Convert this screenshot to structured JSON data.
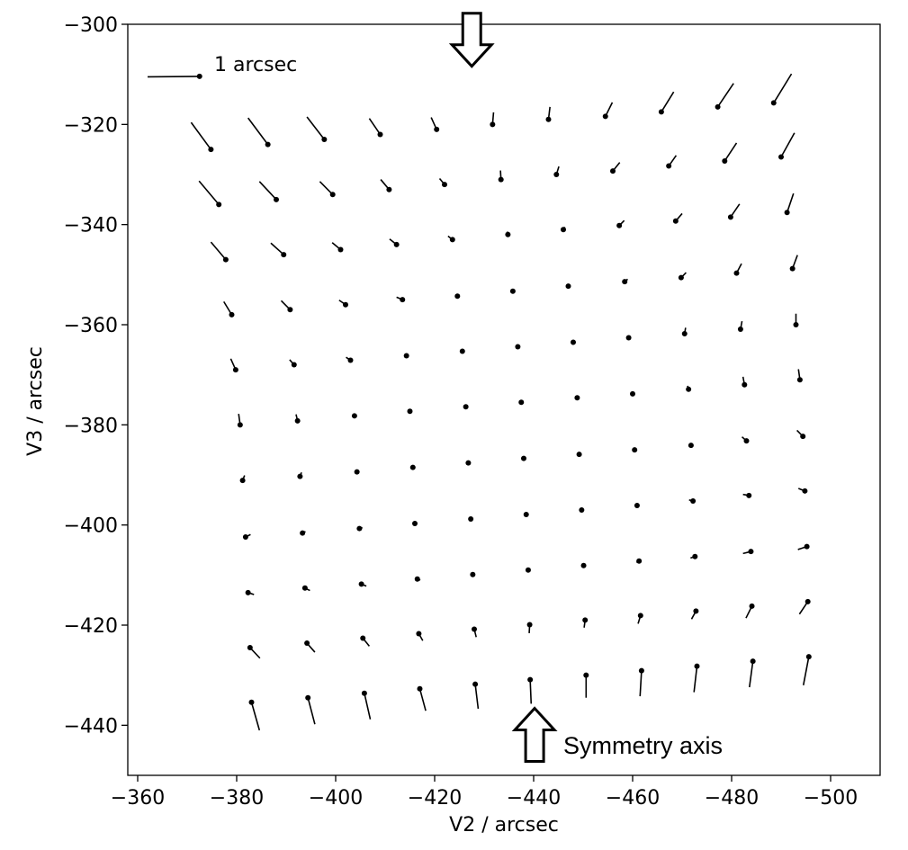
{
  "chart_data": {
    "type": "quiver",
    "title": "",
    "xlabel": "V2 / arcsec",
    "ylabel": "V3 / arcsec",
    "xlim": [
      -358,
      -510
    ],
    "ylim": [
      -450,
      -300
    ],
    "x_axis_inverted": true,
    "xticks": [
      -360,
      -380,
      -400,
      -420,
      -440,
      -460,
      -480,
      -500
    ],
    "yticks": [
      -300,
      -320,
      -340,
      -360,
      -380,
      -400,
      -420,
      -440
    ],
    "xtick_labels": [
      "−360",
      "−380",
      "−400",
      "−420",
      "−440",
      "−460",
      "−480",
      "−500"
    ],
    "ytick_labels": [
      "−300",
      "−320",
      "−340",
      "−360",
      "−380",
      "−400",
      "−420",
      "−440"
    ],
    "grid": false,
    "scale_arrow": {
      "label": "1 arcsec",
      "x": -362,
      "y": -310.5,
      "dx": -10.5,
      "dy": 0.1
    },
    "vectors": [
      {
        "x": -374.8,
        "y": -325,
        "dx": 4,
        "dy": 5.4
      },
      {
        "x": -386.3,
        "y": -324,
        "dx": 4,
        "dy": 5.3
      },
      {
        "x": -397.7,
        "y": -323,
        "dx": 3.5,
        "dy": 4.5
      },
      {
        "x": -409,
        "y": -322,
        "dx": 2.2,
        "dy": 3.2
      },
      {
        "x": -420.4,
        "y": -321,
        "dx": 1.1,
        "dy": 2.4
      },
      {
        "x": -431.7,
        "y": -320,
        "dx": -0.2,
        "dy": 2.4
      },
      {
        "x": -443,
        "y": -319,
        "dx": -0.3,
        "dy": 2.5
      },
      {
        "x": -454.5,
        "y": -318.4,
        "dx": -1.4,
        "dy": 2.8
      },
      {
        "x": -465.8,
        "y": -317.5,
        "dx": -2.5,
        "dy": 4
      },
      {
        "x": -477.2,
        "y": -316.5,
        "dx": -3.2,
        "dy": 4.7
      },
      {
        "x": -488.5,
        "y": -315.7,
        "dx": -3.6,
        "dy": 5.8
      },
      {
        "x": -376.4,
        "y": -336,
        "dx": 4,
        "dy": 4.7
      },
      {
        "x": -388,
        "y": -335,
        "dx": 3.4,
        "dy": 3.6
      },
      {
        "x": -399.4,
        "y": -334,
        "dx": 2.6,
        "dy": 2.6
      },
      {
        "x": -410.8,
        "y": -333,
        "dx": 1.7,
        "dy": 2
      },
      {
        "x": -422,
        "y": -332,
        "dx": 1,
        "dy": 1.2
      },
      {
        "x": -433.4,
        "y": -331,
        "dx": 0.1,
        "dy": 1.8
      },
      {
        "x": -444.6,
        "y": -330,
        "dx": -0.5,
        "dy": 1.6
      },
      {
        "x": -456,
        "y": -329.3,
        "dx": -1.4,
        "dy": 1.7
      },
      {
        "x": -467.3,
        "y": -328.3,
        "dx": -1.5,
        "dy": 2.1
      },
      {
        "x": -478.6,
        "y": -327.3,
        "dx": -2.4,
        "dy": 3.6
      },
      {
        "x": -490,
        "y": -326.5,
        "dx": -2.7,
        "dy": 4.8
      },
      {
        "x": -377.8,
        "y": -347,
        "dx": 3,
        "dy": 3.5
      },
      {
        "x": -389.5,
        "y": -346,
        "dx": 2.6,
        "dy": 2.3
      },
      {
        "x": -401,
        "y": -345,
        "dx": 1.7,
        "dy": 1.4
      },
      {
        "x": -412.3,
        "y": -344,
        "dx": 1.4,
        "dy": 1.1
      },
      {
        "x": -423.6,
        "y": -343,
        "dx": 0.9,
        "dy": 0.7
      },
      {
        "x": -434.8,
        "y": -342,
        "dx": 0.1,
        "dy": 0.6
      },
      {
        "x": -446,
        "y": -341,
        "dx": -0.3,
        "dy": 0.5
      },
      {
        "x": -457.3,
        "y": -340.2,
        "dx": -1,
        "dy": 1
      },
      {
        "x": -468.7,
        "y": -339.3,
        "dx": -1.3,
        "dy": 1.5
      },
      {
        "x": -479.8,
        "y": -338.5,
        "dx": -1.8,
        "dy": 2.6
      },
      {
        "x": -491.2,
        "y": -337.6,
        "dx": -1.3,
        "dy": 3.8
      },
      {
        "x": -379,
        "y": -358,
        "dx": 1.6,
        "dy": 2.6
      },
      {
        "x": -390.8,
        "y": -357,
        "dx": 1.8,
        "dy": 1.8
      },
      {
        "x": -402,
        "y": -356,
        "dx": 1.3,
        "dy": 0.9
      },
      {
        "x": -413.5,
        "y": -355,
        "dx": 1.2,
        "dy": 0.5
      },
      {
        "x": -424.6,
        "y": -354.3,
        "dx": 0.1,
        "dy": 0.3
      },
      {
        "x": -435.8,
        "y": -353.3,
        "dx": 0,
        "dy": 0
      },
      {
        "x": -447,
        "y": -352.3,
        "dx": -0.3,
        "dy": 0.3
      },
      {
        "x": -458.4,
        "y": -351.4,
        "dx": -0.6,
        "dy": 0.5
      },
      {
        "x": -469.8,
        "y": -350.6,
        "dx": -1,
        "dy": 1
      },
      {
        "x": -481,
        "y": -349.7,
        "dx": -1,
        "dy": 1.9
      },
      {
        "x": -492.3,
        "y": -348.8,
        "dx": -1,
        "dy": 2.7
      },
      {
        "x": -379.8,
        "y": -369,
        "dx": 1,
        "dy": 2.2
      },
      {
        "x": -391.6,
        "y": -368,
        "dx": 0.9,
        "dy": 1
      },
      {
        "x": -403,
        "y": -367.1,
        "dx": 0.9,
        "dy": 0.6
      },
      {
        "x": -414.3,
        "y": -366.2,
        "dx": 0.3,
        "dy": 0.2
      },
      {
        "x": -425.6,
        "y": -365.3,
        "dx": 0,
        "dy": 0
      },
      {
        "x": -436.8,
        "y": -364.4,
        "dx": 0,
        "dy": 0
      },
      {
        "x": -448,
        "y": -363.5,
        "dx": 0,
        "dy": 0
      },
      {
        "x": -459.2,
        "y": -362.6,
        "dx": -0.3,
        "dy": 0.4
      },
      {
        "x": -470.5,
        "y": -361.8,
        "dx": -0.2,
        "dy": 1.2
      },
      {
        "x": -481.8,
        "y": -360.9,
        "dx": -0.3,
        "dy": 1.6
      },
      {
        "x": -493,
        "y": -360,
        "dx": 0,
        "dy": 2.2
      },
      {
        "x": -380.7,
        "y": -380,
        "dx": 0.3,
        "dy": 2.2
      },
      {
        "x": -392.3,
        "y": -379.2,
        "dx": 0.3,
        "dy": 1.3
      },
      {
        "x": -403.8,
        "y": -378.2,
        "dx": 0.1,
        "dy": 0.5
      },
      {
        "x": -415,
        "y": -377.3,
        "dx": 0,
        "dy": 0
      },
      {
        "x": -426.3,
        "y": -376.4,
        "dx": 0,
        "dy": 0
      },
      {
        "x": -437.5,
        "y": -375.5,
        "dx": 0,
        "dy": 0
      },
      {
        "x": -448.8,
        "y": -374.6,
        "dx": 0,
        "dy": 0
      },
      {
        "x": -460,
        "y": -373.8,
        "dx": 0,
        "dy": 0
      },
      {
        "x": -471.3,
        "y": -372.9,
        "dx": 0.2,
        "dy": 0.7
      },
      {
        "x": -482.6,
        "y": -372,
        "dx": 0.3,
        "dy": 1.6
      },
      {
        "x": -493.8,
        "y": -371,
        "dx": 0.3,
        "dy": 2.1
      },
      {
        "x": -381.2,
        "y": -391.1,
        "dx": -0.4,
        "dy": 1
      },
      {
        "x": -392.8,
        "y": -390.3,
        "dx": -0.3,
        "dy": 0.8
      },
      {
        "x": -404.3,
        "y": -389.4,
        "dx": 0,
        "dy": 0
      },
      {
        "x": -415.6,
        "y": -388.5,
        "dx": 0,
        "dy": 0
      },
      {
        "x": -426.8,
        "y": -387.6,
        "dx": 0,
        "dy": 0
      },
      {
        "x": -438,
        "y": -386.7,
        "dx": 0,
        "dy": 0
      },
      {
        "x": -449.2,
        "y": -385.9,
        "dx": 0,
        "dy": 0
      },
      {
        "x": -460.4,
        "y": -385,
        "dx": 0,
        "dy": 0
      },
      {
        "x": -471.8,
        "y": -384.1,
        "dx": 0.3,
        "dy": 0.3
      },
      {
        "x": -483,
        "y": -383.2,
        "dx": 0.9,
        "dy": 0.8
      },
      {
        "x": -494.4,
        "y": -382.3,
        "dx": 1.2,
        "dy": 1.2
      },
      {
        "x": -381.8,
        "y": -402.4,
        "dx": -1,
        "dy": 0.5
      },
      {
        "x": -393.3,
        "y": -401.6,
        "dx": -0.6,
        "dy": 0.3
      },
      {
        "x": -404.8,
        "y": -400.7,
        "dx": -0.6,
        "dy": 0.2
      },
      {
        "x": -416,
        "y": -399.7,
        "dx": -0.3,
        "dy": 0
      },
      {
        "x": -427.3,
        "y": -398.8,
        "dx": 0,
        "dy": 0
      },
      {
        "x": -438.5,
        "y": -397.9,
        "dx": 0,
        "dy": 0
      },
      {
        "x": -449.7,
        "y": -397,
        "dx": 0,
        "dy": 0
      },
      {
        "x": -460.9,
        "y": -396.1,
        "dx": 0.5,
        "dy": 0
      },
      {
        "x": -472.2,
        "y": -395.2,
        "dx": 0.8,
        "dy": 0.2
      },
      {
        "x": -483.5,
        "y": -394.1,
        "dx": 1.2,
        "dy": 0.2
      },
      {
        "x": -494.8,
        "y": -393.2,
        "dx": 1.3,
        "dy": 0.5
      },
      {
        "x": -382.3,
        "y": -413.5,
        "dx": -1.2,
        "dy": -0.4
      },
      {
        "x": -393.8,
        "y": -412.6,
        "dx": -1,
        "dy": -0.5
      },
      {
        "x": -405.2,
        "y": -411.8,
        "dx": -1,
        "dy": -0.4
      },
      {
        "x": -416.5,
        "y": -410.8,
        "dx": -0.6,
        "dy": -0.2
      },
      {
        "x": -427.7,
        "y": -409.9,
        "dx": -0.3,
        "dy": -0.2
      },
      {
        "x": -438.9,
        "y": -409,
        "dx": 0,
        "dy": 0
      },
      {
        "x": -450.1,
        "y": -408.1,
        "dx": 0.2,
        "dy": -0.3
      },
      {
        "x": -461.3,
        "y": -407.2,
        "dx": 0.5,
        "dy": -0.3
      },
      {
        "x": -472.6,
        "y": -406.3,
        "dx": 0.9,
        "dy": -0.3
      },
      {
        "x": -483.9,
        "y": -405.3,
        "dx": 1.6,
        "dy": -0.4
      },
      {
        "x": -495.2,
        "y": -404.3,
        "dx": 1.8,
        "dy": -0.6
      },
      {
        "x": -382.7,
        "y": -424.5,
        "dx": -2,
        "dy": -2.1
      },
      {
        "x": -394.2,
        "y": -423.6,
        "dx": -1.6,
        "dy": -1.8
      },
      {
        "x": -405.5,
        "y": -422.6,
        "dx": -1.3,
        "dy": -1.6
      },
      {
        "x": -416.8,
        "y": -421.7,
        "dx": -0.8,
        "dy": -1.4
      },
      {
        "x": -428,
        "y": -420.8,
        "dx": -0.4,
        "dy": -1.6
      },
      {
        "x": -439.2,
        "y": -419.9,
        "dx": 0.1,
        "dy": -1.7
      },
      {
        "x": -450.4,
        "y": -419,
        "dx": 0.2,
        "dy": -1.5
      },
      {
        "x": -461.6,
        "y": -418.1,
        "dx": 0.5,
        "dy": -1.6
      },
      {
        "x": -472.8,
        "y": -417.2,
        "dx": 0.9,
        "dy": -1.6
      },
      {
        "x": -484.1,
        "y": -416.2,
        "dx": 1.2,
        "dy": -2.4
      },
      {
        "x": -495.4,
        "y": -415.3,
        "dx": 1.7,
        "dy": -2.5
      },
      {
        "x": -383,
        "y": -435.4,
        "dx": -1.6,
        "dy": -5.6
      },
      {
        "x": -394.4,
        "y": -434.5,
        "dx": -1.4,
        "dy": -5.3
      },
      {
        "x": -405.8,
        "y": -433.6,
        "dx": -1.2,
        "dy": -5.2
      },
      {
        "x": -417,
        "y": -432.7,
        "dx": -1.2,
        "dy": -4.4
      },
      {
        "x": -428.2,
        "y": -431.8,
        "dx": -0.6,
        "dy": -4.9
      },
      {
        "x": -439.3,
        "y": -430.9,
        "dx": -0.2,
        "dy": -4.8
      },
      {
        "x": -450.6,
        "y": -430,
        "dx": 0,
        "dy": -4.5
      },
      {
        "x": -461.8,
        "y": -429.1,
        "dx": 0.3,
        "dy": -5.1
      },
      {
        "x": -473,
        "y": -428.2,
        "dx": 0.6,
        "dy": -5.2
      },
      {
        "x": -484.3,
        "y": -427.2,
        "dx": 0.7,
        "dy": -5.2
      },
      {
        "x": -495.6,
        "y": -426.3,
        "dx": 1.1,
        "dy": -5.7
      }
    ],
    "annotations": [
      {
        "label": "",
        "kind": "arrow-down",
        "x": -427.5,
        "y": -303
      },
      {
        "label": "Symmetry axis",
        "kind": "arrow-up",
        "x": -440.2,
        "y": -442
      }
    ]
  }
}
